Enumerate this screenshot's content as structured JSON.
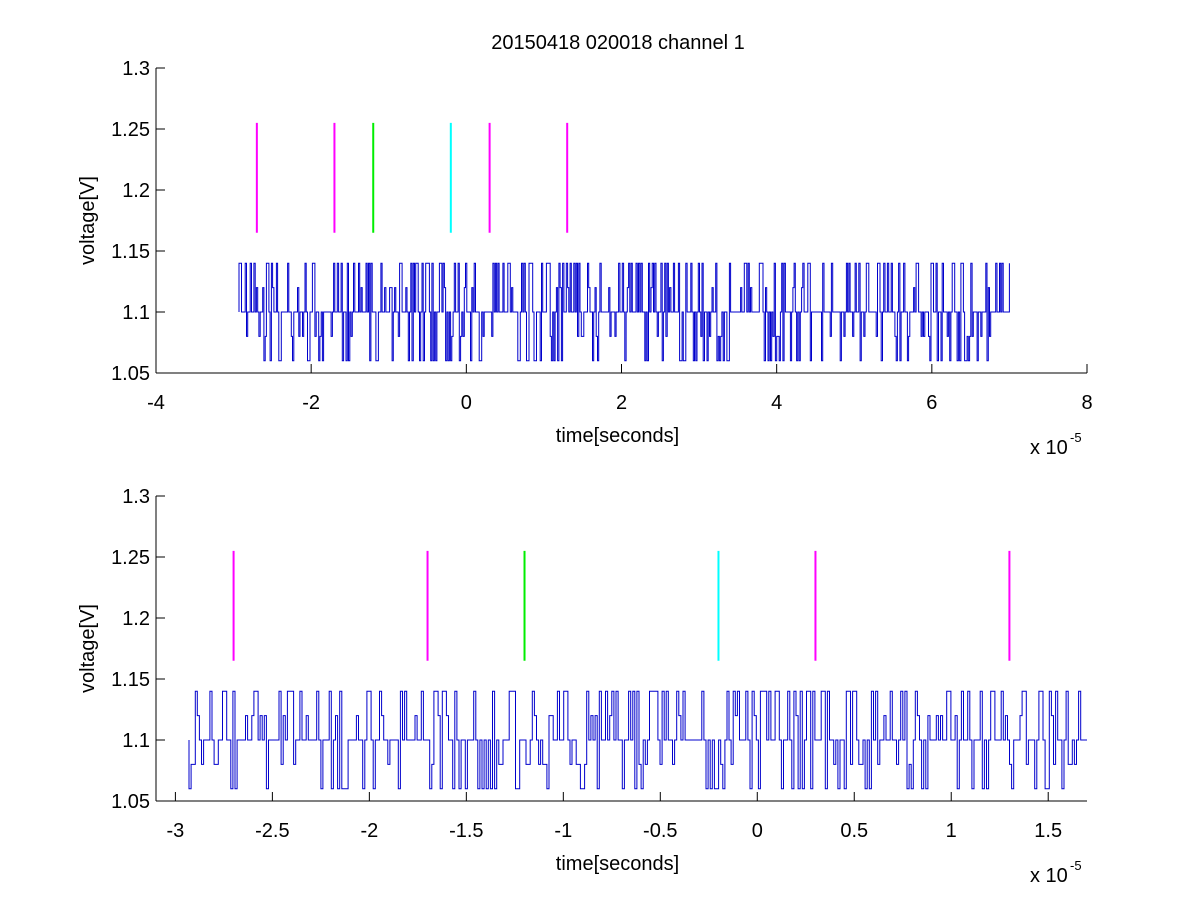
{
  "figure": {
    "title": "20150418 020018 channel 1"
  },
  "colors": {
    "trace": "#0000cc",
    "magenta": "#ff00ff",
    "green": "#00ee00",
    "cyan": "#00ffff",
    "axis": "#000000"
  },
  "chart_data": [
    {
      "type": "line",
      "title": "20150418 020018 channel 1",
      "xlabel": "time[seconds]",
      "ylabel": "voltage[V]",
      "x_scale_label": "x 10",
      "x_scale_exponent": "-5",
      "xlim": [
        -4,
        8
      ],
      "ylim": [
        1.05,
        1.3
      ],
      "xticks": [
        -4,
        -2,
        0,
        2,
        4,
        6,
        8
      ],
      "xtick_labels": [
        "-4",
        "-2",
        "0",
        "2",
        "4",
        "6",
        "8"
      ],
      "yticks": [
        1.05,
        1.1,
        1.15,
        1.2,
        1.25,
        1.3
      ],
      "ytick_labels": [
        "1.05",
        "1.1",
        "1.15",
        "1.2",
        "1.25",
        "1.3"
      ],
      "grid": false,
      "signal": {
        "x_start": -2.93,
        "x_end": 7.0,
        "baseline": 1.1,
        "high": 1.14,
        "low": 1.06
      },
      "markers": [
        {
          "x": -2.7,
          "ymin": 1.165,
          "ymax": 1.255,
          "color": "magenta"
        },
        {
          "x": -1.7,
          "ymin": 1.165,
          "ymax": 1.255,
          "color": "magenta"
        },
        {
          "x": -1.2,
          "ymin": 1.165,
          "ymax": 1.255,
          "color": "green"
        },
        {
          "x": -0.2,
          "ymin": 1.165,
          "ymax": 1.255,
          "color": "cyan"
        },
        {
          "x": 0.3,
          "ymin": 1.165,
          "ymax": 1.255,
          "color": "magenta"
        },
        {
          "x": 1.3,
          "ymin": 1.165,
          "ymax": 1.255,
          "color": "magenta"
        }
      ]
    },
    {
      "type": "line",
      "title": "",
      "xlabel": "time[seconds]",
      "ylabel": "voltage[V]",
      "x_scale_label": "x 10",
      "x_scale_exponent": "-5",
      "xlim": [
        -3.1,
        1.7
      ],
      "ylim": [
        1.05,
        1.3
      ],
      "xticks": [
        -3,
        -2.5,
        -2,
        -1.5,
        -1,
        -0.5,
        0,
        0.5,
        1,
        1.5
      ],
      "xtick_labels": [
        "-3",
        "-2.5",
        "-2",
        "-1.5",
        "-1",
        "-0.5",
        "0",
        "0.5",
        "1",
        "1.5"
      ],
      "yticks": [
        1.05,
        1.1,
        1.15,
        1.2,
        1.25,
        1.3
      ],
      "ytick_labels": [
        "1.05",
        "1.1",
        "1.15",
        "1.2",
        "1.25",
        "1.3"
      ],
      "grid": false,
      "signal": {
        "x_start": -2.93,
        "x_end": 1.7,
        "baseline": 1.1,
        "high": 1.14,
        "low": 1.06
      },
      "markers": [
        {
          "x": -2.7,
          "ymin": 1.165,
          "ymax": 1.255,
          "color": "magenta"
        },
        {
          "x": -1.7,
          "ymin": 1.165,
          "ymax": 1.255,
          "color": "magenta"
        },
        {
          "x": -1.2,
          "ymin": 1.165,
          "ymax": 1.255,
          "color": "green"
        },
        {
          "x": -0.2,
          "ymin": 1.165,
          "ymax": 1.255,
          "color": "cyan"
        },
        {
          "x": 0.3,
          "ymin": 1.165,
          "ymax": 1.255,
          "color": "magenta"
        },
        {
          "x": 1.3,
          "ymin": 1.165,
          "ymax": 1.255,
          "color": "magenta"
        }
      ]
    }
  ]
}
